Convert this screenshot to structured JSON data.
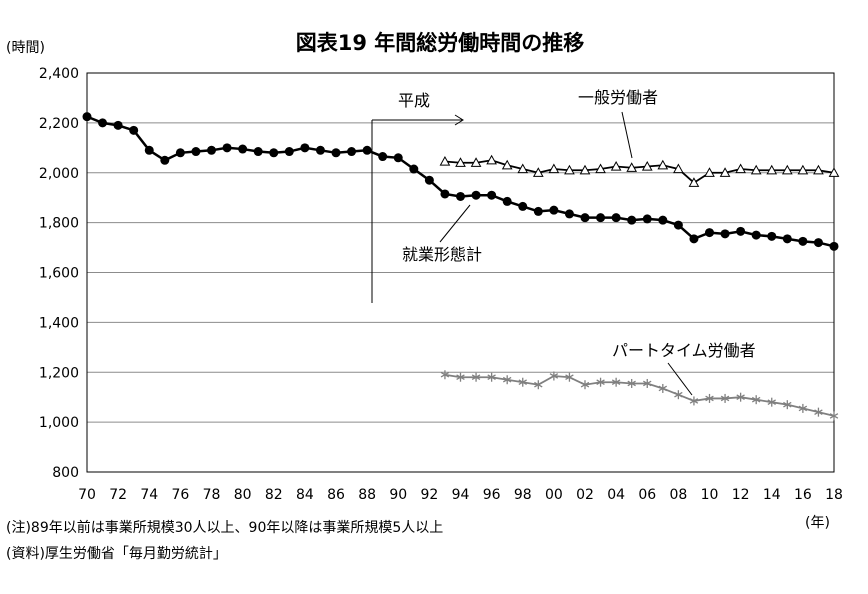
{
  "chart_data": {
    "type": "line",
    "title": "図表19 年間総労働時間の推移",
    "y_unit_label": "(時間)",
    "x_unit_label": "(年)",
    "ylim": [
      800,
      2400
    ],
    "y_ticks": [
      "800",
      "1,000",
      "1,200",
      "1,400",
      "1,600",
      "1,800",
      "2,000",
      "2,200",
      "2,400"
    ],
    "x_range": [
      1970,
      2018
    ],
    "x_tick_years": [
      1970,
      1972,
      1974,
      1976,
      1978,
      1980,
      1982,
      1984,
      1986,
      1988,
      1990,
      1992,
      1994,
      1996,
      1998,
      2000,
      2002,
      2004,
      2006,
      2008,
      2010,
      2012,
      2014,
      2016,
      2018
    ],
    "x_tick_labels": [
      "70",
      "72",
      "74",
      "76",
      "78",
      "80",
      "82",
      "84",
      "86",
      "88",
      "90",
      "92",
      "94",
      "96",
      "98",
      "00",
      "02",
      "04",
      "06",
      "08",
      "10",
      "12",
      "14",
      "16",
      "18"
    ],
    "grid": "horizontal",
    "series": [
      {
        "name": "就業形態計",
        "color": "#000000",
        "marker": "circle",
        "x": [
          1970,
          1971,
          1972,
          1973,
          1974,
          1975,
          1976,
          1977,
          1978,
          1979,
          1980,
          1981,
          1982,
          1983,
          1984,
          1985,
          1986,
          1987,
          1988,
          1989,
          1990,
          1991,
          1992,
          1993,
          1994,
          1995,
          1996,
          1997,
          1998,
          1999,
          2000,
          2001,
          2002,
          2003,
          2004,
          2005,
          2006,
          2007,
          2008,
          2009,
          2010,
          2011,
          2012,
          2013,
          2014,
          2015,
          2016,
          2017,
          2018
        ],
        "values": [
          2225,
          2200,
          2190,
          2170,
          2090,
          2050,
          2080,
          2085,
          2090,
          2100,
          2095,
          2085,
          2080,
          2085,
          2100,
          2090,
          2080,
          2085,
          2090,
          2065,
          2060,
          2015,
          1970,
          1915,
          1905,
          1910,
          1910,
          1885,
          1865,
          1845,
          1850,
          1835,
          1820,
          1820,
          1820,
          1810,
          1815,
          1810,
          1790,
          1735,
          1760,
          1755,
          1765,
          1750,
          1745,
          1735,
          1725,
          1720,
          1705
        ]
      },
      {
        "name": "一般労働者",
        "color": "#000000",
        "marker": "triangle",
        "x": [
          1993,
          1994,
          1995,
          1996,
          1997,
          1998,
          1999,
          2000,
          2001,
          2002,
          2003,
          2004,
          2005,
          2006,
          2007,
          2008,
          2009,
          2010,
          2011,
          2012,
          2013,
          2014,
          2015,
          2016,
          2017,
          2018
        ],
        "values": [
          2045,
          2040,
          2040,
          2050,
          2030,
          2015,
          2000,
          2015,
          2010,
          2010,
          2015,
          2025,
          2020,
          2025,
          2030,
          2015,
          1960,
          2000,
          2000,
          2015,
          2010,
          2010,
          2010,
          2010,
          2010,
          2000
        ]
      },
      {
        "name": "パートタイム労働者",
        "color": "#808080",
        "marker": "asterisk",
        "x": [
          1993,
          1994,
          1995,
          1996,
          1997,
          1998,
          1999,
          2000,
          2001,
          2002,
          2003,
          2004,
          2005,
          2006,
          2007,
          2008,
          2009,
          2010,
          2011,
          2012,
          2013,
          2014,
          2015,
          2016,
          2017,
          2018
        ],
        "values": [
          1190,
          1180,
          1180,
          1180,
          1170,
          1160,
          1150,
          1185,
          1180,
          1150,
          1160,
          1160,
          1155,
          1155,
          1135,
          1110,
          1085,
          1095,
          1095,
          1100,
          1090,
          1080,
          1070,
          1055,
          1040,
          1025
        ]
      }
    ],
    "annotations": {
      "heisei": "平成"
    }
  },
  "notes": {
    "note1": "(注)89年以前は事業所規模30人以上、90年以降は事業所規模5人以上",
    "note2": "(資料)厚生労働省「毎月勤労統計」"
  }
}
